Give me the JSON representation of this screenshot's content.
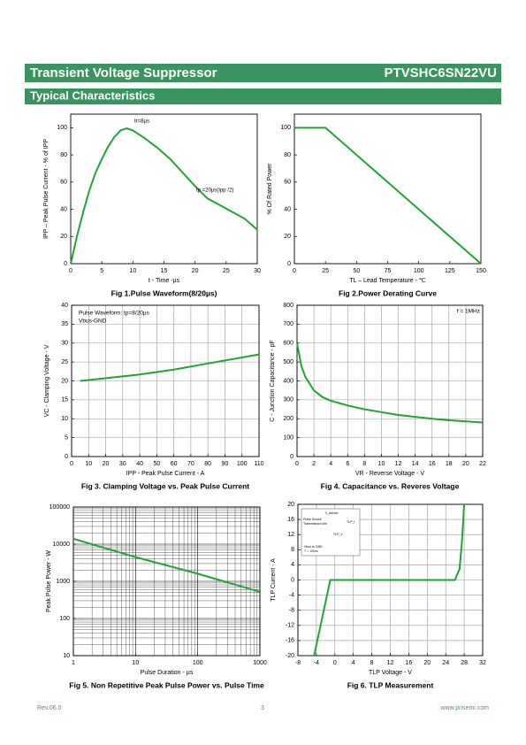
{
  "header": {
    "title": "Transient Voltage Suppressor",
    "part": "PTVSHC6SN22VU",
    "section": "Typical Characteristics"
  },
  "chart_data": [
    {
      "type": "line",
      "title": "Fig 1.Pulse Waveform(8/20µs)",
      "x_label": "t - Time -µs",
      "y_label": "IPP – Peak Pulse Current - % of IPP",
      "x": [
        0,
        1,
        2,
        3,
        4,
        5,
        6,
        7,
        8,
        9,
        10,
        12,
        14,
        16,
        18,
        20,
        22,
        24,
        26,
        28,
        30
      ],
      "values": [
        0,
        20,
        38,
        54,
        67,
        77,
        86,
        93,
        98,
        99.5,
        98,
        92,
        85,
        77,
        67,
        57,
        48,
        43,
        38,
        33,
        25
      ],
      "color": "#22a33a",
      "xlim": [
        0,
        30
      ],
      "xticks": [
        0,
        5,
        10,
        15,
        20,
        25,
        30
      ],
      "ylim": [
        0,
        110
      ],
      "yticks": [
        0,
        20,
        40,
        60,
        80,
        100
      ],
      "grid": false,
      "annotations": [
        "tr=8µs",
        "tp =20µs(Ipp /2)"
      ]
    },
    {
      "type": "line",
      "title": "Fig 2.Power Derating Curve",
      "x_label": "TL – Lead Temperature - ℃",
      "y_label": "% Of Rated Power",
      "x": [
        0,
        25,
        150
      ],
      "values": [
        100,
        100,
        0
      ],
      "color": "#22a33a",
      "xlim": [
        0,
        150
      ],
      "xticks": [
        0,
        25,
        50,
        75,
        100,
        125,
        150
      ],
      "ylim": [
        0,
        110
      ],
      "yticks": [
        0,
        20,
        40,
        60,
        80,
        100
      ],
      "grid": false,
      "annotations": []
    },
    {
      "type": "line",
      "title": "Fig 3. Clamping Voltage vs. Peak Pulse Current",
      "x_label": "IPP - Peak Pulse Current - A",
      "y_label": "VC - Clamping Voltage - V",
      "x": [
        5,
        20,
        40,
        60,
        80,
        100,
        110
      ],
      "values": [
        20,
        20.7,
        21.7,
        23,
        24.6,
        26.2,
        27
      ],
      "color": "#22a33a",
      "xlim": [
        0,
        110
      ],
      "xticks": [
        0,
        10,
        20,
        30,
        40,
        50,
        60,
        70,
        80,
        90,
        100,
        110
      ],
      "ylim": [
        0,
        40
      ],
      "yticks": [
        0,
        5,
        10,
        15,
        20,
        25,
        30,
        35,
        40
      ],
      "grid": true,
      "annotations": [
        "Pulse Waveform: tp=8/20µs",
        "Vbus-GND"
      ]
    },
    {
      "type": "line",
      "title": "Fig 4. Capacitance vs. Reveres Voltage",
      "x_label": "VR - Reverse Voltage - V",
      "y_label": "C - Junction Capacitance - pF",
      "x": [
        0,
        0.5,
        1,
        2,
        3,
        4,
        6,
        8,
        10,
        12,
        14,
        16,
        18,
        20,
        22
      ],
      "values": [
        600,
        480,
        420,
        350,
        315,
        295,
        270,
        250,
        235,
        220,
        210,
        200,
        192,
        186,
        180
      ],
      "color": "#22a33a",
      "xlim": [
        0,
        22
      ],
      "xticks": [
        0,
        2,
        4,
        6,
        8,
        10,
        12,
        14,
        16,
        18,
        20,
        22
      ],
      "ylim": [
        0,
        800
      ],
      "yticks": [
        0,
        100,
        200,
        300,
        400,
        500,
        600,
        700,
        800
      ],
      "grid": true,
      "annotations": [
        "f = 1MHz"
      ]
    },
    {
      "type": "line",
      "title": "Fig 5. Non Repetitive Peak Pulse Power vs. Pulse Time",
      "x_label": "Pulse Duration - µs",
      "y_label": "Peak Pulse Power - W",
      "x": [
        1,
        10,
        100,
        1000
      ],
      "values": [
        14000,
        4500,
        1600,
        520
      ],
      "color": "#22a33a",
      "xscale": "log",
      "yscale": "log",
      "xlim": [
        1,
        1000
      ],
      "xticks": [
        1,
        10,
        100,
        1000
      ],
      "ylim": [
        10,
        100000
      ],
      "yticks": [
        10,
        100,
        1000,
        10000,
        100000
      ],
      "grid": true,
      "annotations": []
    },
    {
      "type": "line",
      "title": "Fig 6. TLP Measurement",
      "x_label": "TLP Voltage - V",
      "y_label": "TLP Current - A",
      "x": [
        -4.5,
        -1,
        26,
        27,
        27.5,
        28
      ],
      "values": [
        -20,
        0,
        0,
        3,
        10,
        20
      ],
      "color": "#22a33a",
      "xlim": [
        -8,
        32
      ],
      "xticks": [
        -8,
        -4,
        0,
        4,
        8,
        12,
        16,
        20,
        24,
        28,
        32
      ],
      "ylim": [
        -20,
        20
      ],
      "yticks": [
        -20,
        -16,
        -12,
        -8,
        -4,
        0,
        4,
        8,
        12,
        16,
        20
      ],
      "grid": true,
      "annotations": [
        "Pulse Source",
        "Transmission line",
        "V_device",
        "TLP_V",
        "TLP_I",
        "Vbus to GND",
        "T = 100ns"
      ]
    }
  ],
  "footer": {
    "revision": "Rev.06.0",
    "page": "3",
    "website": "www.prisemi.com"
  }
}
